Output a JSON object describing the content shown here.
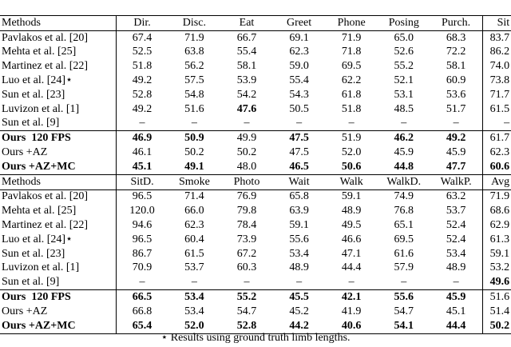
{
  "sections": [
    {
      "header": [
        "Methods",
        "Dir.",
        "Disc.",
        "Eat",
        "Greet",
        "Phone",
        "Posing",
        "Purch.",
        "Sit"
      ],
      "rows": [
        {
          "method": "Pavlakos et al. [20]",
          "values": [
            "67.4",
            "71.9",
            "66.7",
            "69.1",
            "71.9",
            "65.0",
            "68.3",
            "83.7"
          ]
        },
        {
          "method": "Mehta et al. [25]",
          "values": [
            "52.5",
            "63.8",
            "55.4",
            "62.3",
            "71.8",
            "52.6",
            "72.2",
            "86.2"
          ]
        },
        {
          "method": "Martinez et al. [22]",
          "values": [
            "51.8",
            "56.2",
            "58.1",
            "59.0",
            "69.5",
            "55.2",
            "58.1",
            "74.0"
          ]
        },
        {
          "method": "Luo et al. [24]⋆",
          "values": [
            "49.2",
            "57.5",
            "53.9",
            "55.4",
            "62.2",
            "52.1",
            "60.9",
            "73.8"
          ]
        },
        {
          "method": "Sun et al. [23]",
          "values": [
            "52.8",
            "54.8",
            "54.2",
            "54.3",
            "61.8",
            "53.1",
            "53.6",
            "71.7"
          ]
        },
        {
          "method": "Luvizon et al. [1]",
          "values": [
            "49.2",
            "51.6",
            "47.6",
            "50.5",
            "51.8",
            "48.5",
            "51.7",
            "61.5"
          ]
        },
        {
          "method": "Sun et al. [9]",
          "values": [
            "–",
            "–",
            "–",
            "–",
            "–",
            "–",
            "–",
            "–"
          ]
        },
        {
          "method": "Ours  120 FPS",
          "values": [
            "46.9",
            "50.9",
            "49.9",
            "47.5",
            "51.9",
            "46.2",
            "49.2",
            "61.7"
          ]
        },
        {
          "method": "Ours +AZ",
          "values": [
            "46.1",
            "50.2",
            "50.2",
            "47.5",
            "52.0",
            "45.9",
            "45.9",
            "62.3"
          ]
        },
        {
          "method": "Ours +AZ+MC",
          "values": [
            "45.1",
            "49.1",
            "48.0",
            "46.5",
            "50.6",
            "44.8",
            "47.7",
            "60.6"
          ]
        }
      ],
      "bold": [
        [
          5,
          2
        ],
        [
          7,
          0
        ],
        [
          7,
          1
        ],
        [
          7,
          3
        ],
        [
          7,
          5
        ],
        [
          7,
          6
        ],
        [
          9,
          0
        ],
        [
          9,
          1
        ],
        [
          9,
          3
        ],
        [
          9,
          4
        ],
        [
          9,
          5
        ],
        [
          9,
          6
        ],
        [
          9,
          7
        ]
      ]
    },
    {
      "header": [
        "Methods",
        "SitD.",
        "Smoke",
        "Photo",
        "Wait",
        "Walk",
        "WalkD.",
        "WalkP.",
        "Avg"
      ],
      "rows": [
        {
          "method": "Pavlakos et al. [20]",
          "values": [
            "96.5",
            "71.4",
            "76.9",
            "65.8",
            "59.1",
            "74.9",
            "63.2",
            "71.9"
          ]
        },
        {
          "method": "Mehta et al. [25]",
          "values": [
            "120.0",
            "66.0",
            "79.8",
            "63.9",
            "48.9",
            "76.8",
            "53.7",
            "68.6"
          ]
        },
        {
          "method": "Martinez et al. [22]",
          "values": [
            "94.6",
            "62.3",
            "78.4",
            "59.1",
            "49.5",
            "65.1",
            "52.4",
            "62.9"
          ]
        },
        {
          "method": "Luo et al. [24]⋆",
          "values": [
            "96.5",
            "60.4",
            "73.9",
            "55.6",
            "46.6",
            "69.5",
            "52.4",
            "61.3"
          ]
        },
        {
          "method": "Sun et al. [23]",
          "values": [
            "86.7",
            "61.5",
            "67.2",
            "53.4",
            "47.1",
            "61.6",
            "53.4",
            "59.1"
          ]
        },
        {
          "method": "Luvizon et al. [1]",
          "values": [
            "70.9",
            "53.7",
            "60.3",
            "48.9",
            "44.4",
            "57.9",
            "48.9",
            "53.2"
          ]
        },
        {
          "method": "Sun et al. [9]",
          "values": [
            "–",
            "–",
            "–",
            "–",
            "–",
            "–",
            "–",
            "49.6"
          ]
        },
        {
          "method": "Ours  120 FPS",
          "values": [
            "66.5",
            "53.4",
            "55.2",
            "45.5",
            "42.1",
            "55.6",
            "45.9",
            "51.6"
          ]
        },
        {
          "method": "Ours +AZ",
          "values": [
            "66.8",
            "53.4",
            "54.7",
            "45.2",
            "41.9",
            "54.7",
            "45.1",
            "51.4"
          ]
        },
        {
          "method": "Ours +AZ+MC",
          "values": [
            "65.4",
            "52.0",
            "52.8",
            "44.2",
            "40.6",
            "54.1",
            "44.4",
            "50.2"
          ]
        }
      ],
      "bold": [
        [
          6,
          7
        ],
        [
          7,
          0
        ],
        [
          7,
          1
        ],
        [
          7,
          2
        ],
        [
          7,
          3
        ],
        [
          7,
          4
        ],
        [
          7,
          5
        ],
        [
          7,
          6
        ],
        [
          9,
          0
        ],
        [
          9,
          1
        ],
        [
          9,
          2
        ],
        [
          9,
          3
        ],
        [
          9,
          4
        ],
        [
          9,
          5
        ],
        [
          9,
          6
        ],
        [
          9,
          7
        ]
      ]
    }
  ],
  "footnote": "⋆ Results using ground truth limb lengths.",
  "bold_methods": [
    7,
    9
  ]
}
